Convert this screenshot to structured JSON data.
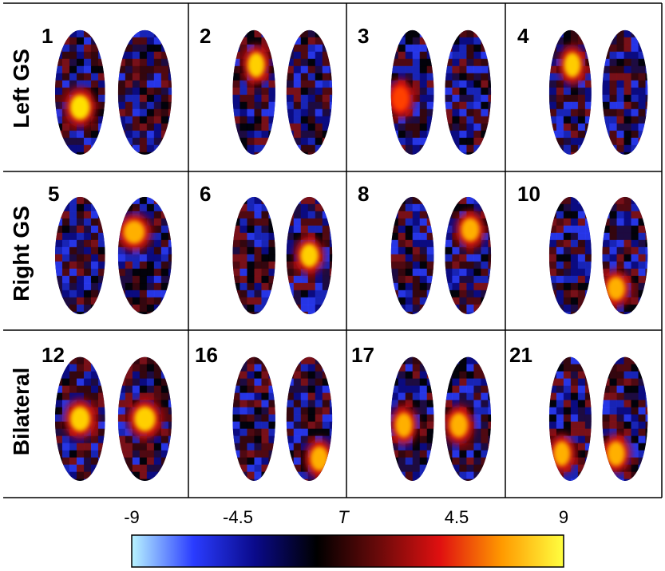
{
  "rows": [
    {
      "label": "Left GS",
      "panels": [
        "1",
        "2",
        "3",
        "4"
      ]
    },
    {
      "label": "Right GS",
      "panels": [
        "5",
        "6",
        "8",
        "10"
      ]
    },
    {
      "label": "Bilateral",
      "panels": [
        "12",
        "16",
        "17",
        "21"
      ]
    }
  ],
  "colorbar": {
    "ticks": [
      "-9",
      "-4.5",
      "T",
      "4.5",
      "9"
    ],
    "stops": [
      "#b8f4ff",
      "#2a3cff",
      "#0a0a8a",
      "#000000",
      "#6a0a0a",
      "#e01010",
      "#ff9a00",
      "#ffff40"
    ]
  },
  "blobs": [
    [
      {
        "side": "left",
        "pos": "center-low",
        "color": "#ffe000"
      },
      {
        "side": "left",
        "pos": "upper",
        "color": "#ffd000"
      },
      {
        "side": "left",
        "pos": "mid-left",
        "color": "#ff4000"
      },
      {
        "side": "left",
        "pos": "upper",
        "color": "#ffcc00"
      }
    ],
    [
      {
        "side": "right",
        "pos": "upper-left",
        "color": "#ffb000"
      },
      {
        "side": "right",
        "pos": "center",
        "color": "#ffd000"
      },
      {
        "side": "right",
        "pos": "upper",
        "color": "#ffb000"
      },
      {
        "side": "right",
        "pos": "lower-left",
        "color": "#ffb000"
      }
    ],
    [
      {
        "side": "both",
        "pos": "center",
        "color": "#ffd000"
      },
      {
        "side": "right",
        "pos": "lower-right",
        "color": "#ffb000"
      },
      {
        "side": "both",
        "pos": "center-left",
        "color": "#ffb000"
      },
      {
        "side": "both",
        "pos": "lower-left",
        "color": "#ffb000"
      }
    ]
  ]
}
